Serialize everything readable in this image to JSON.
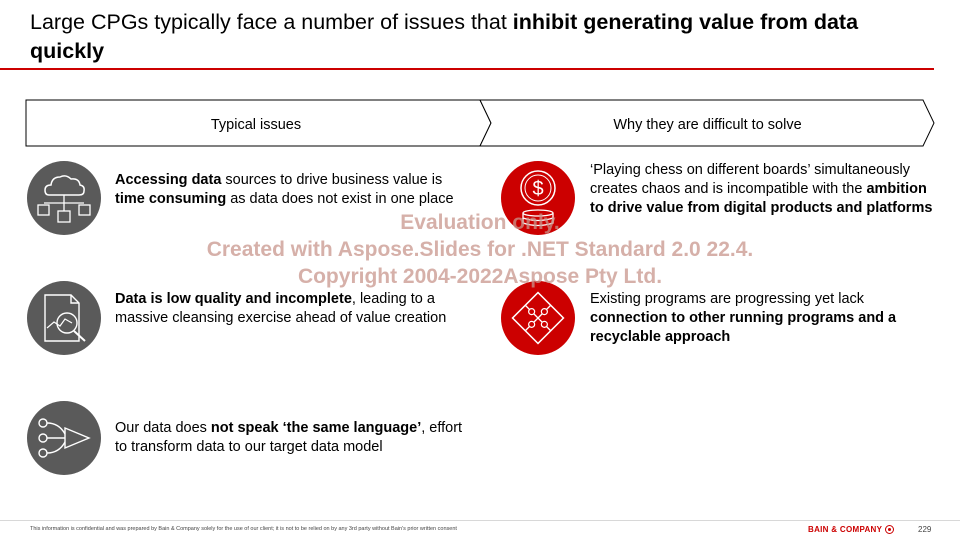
{
  "title": {
    "plain": "Large CPGs typically face a number of issues that ",
    "bold": "inhibit generating value from data quickly"
  },
  "headers": {
    "left": "Typical issues",
    "right": "Why they are difficult to solve"
  },
  "issues": [
    {
      "icon": "cloud-network-icon",
      "p1_bold": "Accessing data",
      "p2": " sources to drive business value is ",
      "p3_bold": "time consuming",
      "p4": " as data does not exist in one place"
    },
    {
      "icon": "document-magnifier-icon",
      "p1_bold": "Data is low quality and incomplete",
      "p2": ", leading to a massive cleansing exercise ahead of value creation"
    },
    {
      "icon": "data-flow-icon",
      "p1": "Our data does ",
      "p2_bold": "not speak ‘the same language’",
      "p3": ", effort to transform data to our target data model"
    }
  ],
  "reasons": [
    {
      "icon": "dollar-coins-icon",
      "p1": "‘Playing chess on different boards’ simultaneously creates chaos and is incompatible with the ",
      "p2_bold": "ambition to drive value from digital products and platforms"
    },
    {
      "icon": "puzzle-icon",
      "p1": "Existing programs are progressing yet lack ",
      "p2_bold": "connection to other running programs and a recyclable approach"
    }
  ],
  "watermark": {
    "line1": "Evaluation only.",
    "line2": "Created with Aspose.Slides for .NET Standard 2.0 22.4.",
    "line3": "Copyright 2004-2022Aspose Pty Ltd."
  },
  "footer": {
    "disclaimer": "This information is confidential and was prepared by Bain & Company solely for the use of our client; it is not to be relied on by any 3rd party without Bain's prior written consent",
    "brand": "BAIN & COMPANY",
    "page_number": "229"
  },
  "colors": {
    "accent_red": "#cc0000",
    "icon_gray": "#5a5a5a"
  }
}
